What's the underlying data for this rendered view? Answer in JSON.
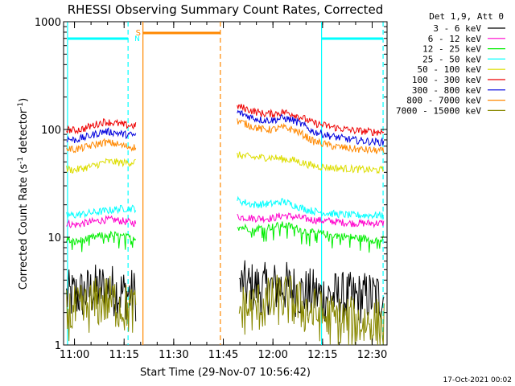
{
  "chart_data": {
    "type": "line",
    "title": "RHESSI Observing Summary Count Rates, Corrected",
    "xlabel": "Start Time (29-Nov-07 10:56:42)",
    "ylabel": "Corrected Count Rate (s",
    "ylabel_sup1": "-1",
    "ylabel_mid": " detector",
    "ylabel_sup2": "-1",
    "ylabel_end": ")",
    "yscale": "log",
    "xlim": [
      10.945,
      12.575
    ],
    "ylim": [
      1,
      1000
    ],
    "x_ticks": [
      {
        "value": 11.0,
        "label": "11:00"
      },
      {
        "value": 11.25,
        "label": "11:15"
      },
      {
        "value": 11.5,
        "label": "11:30"
      },
      {
        "value": 11.75,
        "label": "11:45"
      },
      {
        "value": 12.0,
        "label": "12:00"
      },
      {
        "value": 12.25,
        "label": "12:15"
      },
      {
        "value": 12.5,
        "label": "12:30"
      }
    ],
    "y_ticks": [
      {
        "value": 1,
        "label": "1"
      },
      {
        "value": 10,
        "label": "10"
      },
      {
        "value": 100,
        "label": "100"
      },
      {
        "value": 1000,
        "label": "1000"
      }
    ],
    "legend_title": "Det 1,9, Att 0",
    "legend_position": "right",
    "series": [
      {
        "name": "3 - 6 keV",
        "color": "#000000",
        "segments": [
          [
            [
              10.96,
              2.8
            ],
            [
              11.05,
              3.0
            ],
            [
              11.1,
              3.2
            ],
            [
              11.15,
              3.4
            ],
            [
              11.2,
              3.2
            ],
            [
              11.25,
              3.0
            ],
            [
              11.31,
              2.9
            ]
          ],
          [
            [
              11.83,
              3.5
            ],
            [
              11.9,
              3.4
            ],
            [
              11.95,
              3.3
            ],
            [
              12.0,
              3.4
            ],
            [
              12.05,
              3.5
            ],
            [
              12.1,
              3.3
            ],
            [
              12.15,
              3.0
            ],
            [
              12.22,
              2.9
            ],
            [
              12.3,
              2.8
            ],
            [
              12.4,
              2.7
            ],
            [
              12.5,
              2.8
            ],
            [
              12.56,
              2.8
            ]
          ]
        ]
      },
      {
        "name": "6 - 12 keV",
        "color": "#ff00cc",
        "segments": [
          [
            [
              10.96,
              13.5
            ],
            [
              11.0,
              13.0
            ],
            [
              11.05,
              13.5
            ],
            [
              11.1,
              14.0
            ],
            [
              11.15,
              14.5
            ],
            [
              11.2,
              14.5
            ],
            [
              11.25,
              14.0
            ],
            [
              11.31,
              13.5
            ]
          ],
          [
            [
              11.82,
              15.5
            ],
            [
              11.9,
              15.0
            ],
            [
              12.0,
              15.0
            ],
            [
              12.05,
              16.0
            ],
            [
              12.1,
              15.5
            ],
            [
              12.15,
              15.0
            ],
            [
              12.2,
              14.5
            ],
            [
              12.3,
              14.0
            ],
            [
              12.4,
              13.5
            ],
            [
              12.5,
              13.5
            ],
            [
              12.56,
              13.5
            ]
          ]
        ]
      },
      {
        "name": "12 - 25 keV",
        "color": "#00ee00",
        "segments": [
          [
            [
              10.96,
              9.5
            ],
            [
              11.0,
              9.0
            ],
            [
              11.05,
              9.5
            ],
            [
              11.1,
              10.0
            ],
            [
              11.15,
              10.5
            ],
            [
              11.2,
              10.5
            ],
            [
              11.25,
              10.0
            ],
            [
              11.31,
              10.0
            ]
          ],
          [
            [
              11.82,
              12.5
            ],
            [
              11.9,
              12.0
            ],
            [
              12.0,
              12.5
            ],
            [
              12.05,
              13.0
            ],
            [
              12.1,
              12.5
            ],
            [
              12.15,
              11.5
            ],
            [
              12.2,
              11.0
            ],
            [
              12.3,
              10.5
            ],
            [
              12.4,
              10.0
            ],
            [
              12.5,
              9.5
            ],
            [
              12.56,
              9.5
            ]
          ]
        ]
      },
      {
        "name": "25 - 50 keV",
        "color": "#00ffff",
        "segments": [
          [
            [
              10.96,
              16.0
            ],
            [
              11.0,
              16.0
            ],
            [
              11.05,
              16.5
            ],
            [
              11.1,
              17.0
            ],
            [
              11.15,
              17.5
            ],
            [
              11.2,
              18.0
            ],
            [
              11.25,
              18.5
            ],
            [
              11.31,
              18.5
            ]
          ],
          [
            [
              11.82,
              22.0
            ],
            [
              11.9,
              20.0
            ],
            [
              12.0,
              20.5
            ],
            [
              12.05,
              21.5
            ],
            [
              12.1,
              20.0
            ],
            [
              12.15,
              18.5
            ],
            [
              12.2,
              17.5
            ],
            [
              12.3,
              16.5
            ],
            [
              12.4,
              16.0
            ],
            [
              12.5,
              16.0
            ],
            [
              12.56,
              16.0
            ]
          ]
        ]
      },
      {
        "name": "50 - 100 keV",
        "color": "#dddd00",
        "segments": [
          [
            [
              10.96,
              43.0
            ],
            [
              11.0,
              42.0
            ],
            [
              11.05,
              44.0
            ],
            [
              11.1,
              46.0
            ],
            [
              11.15,
              50.0
            ],
            [
              11.2,
              50.0
            ],
            [
              11.25,
              49.0
            ],
            [
              11.31,
              50.0
            ]
          ],
          [
            [
              11.82,
              58.0
            ],
            [
              11.9,
              55.0
            ],
            [
              11.95,
              55.0
            ],
            [
              12.0,
              55.0
            ],
            [
              12.05,
              53.0
            ],
            [
              12.1,
              52.0
            ],
            [
              12.15,
              49.0
            ],
            [
              12.2,
              46.0
            ],
            [
              12.3,
              44.0
            ],
            [
              12.4,
              43.0
            ],
            [
              12.5,
              42.0
            ],
            [
              12.56,
              42.0
            ]
          ]
        ]
      },
      {
        "name": "100 - 300 keV",
        "color": "#ee0000",
        "segments": [
          [
            [
              10.96,
              100.0
            ],
            [
              11.0,
              98.0
            ],
            [
              11.05,
              102.0
            ],
            [
              11.1,
              110.0
            ],
            [
              11.15,
              118.0
            ],
            [
              11.2,
              115.0
            ],
            [
              11.25,
              110.0
            ],
            [
              11.31,
              108.0
            ]
          ],
          [
            [
              11.82,
              165.0
            ],
            [
              11.9,
              148.0
            ],
            [
              11.95,
              140.0
            ],
            [
              12.0,
              140.0
            ],
            [
              12.05,
              145.0
            ],
            [
              12.1,
              140.0
            ],
            [
              12.15,
              128.0
            ],
            [
              12.2,
              115.0
            ],
            [
              12.3,
              105.0
            ],
            [
              12.4,
              98.0
            ],
            [
              12.5,
              95.0
            ],
            [
              12.56,
              95.0
            ]
          ]
        ]
      },
      {
        "name": "300 - 800 keV",
        "color": "#0000dd",
        "segments": [
          [
            [
              10.96,
              82.0
            ],
            [
              11.0,
              80.0
            ],
            [
              11.05,
              84.0
            ],
            [
              11.1,
              90.0
            ],
            [
              11.15,
              96.0
            ],
            [
              11.2,
              94.0
            ],
            [
              11.25,
              90.0
            ],
            [
              11.31,
              88.0
            ]
          ],
          [
            [
              11.82,
              145.0
            ],
            [
              11.9,
              128.0
            ],
            [
              11.95,
              122.0
            ],
            [
              12.0,
              122.0
            ],
            [
              12.05,
              128.0
            ],
            [
              12.1,
              122.0
            ],
            [
              12.15,
              110.0
            ],
            [
              12.2,
              96.0
            ],
            [
              12.3,
              86.0
            ],
            [
              12.4,
              80.0
            ],
            [
              12.5,
              77.0
            ],
            [
              12.56,
              76.0
            ]
          ]
        ]
      },
      {
        "name": "800 - 7000 keV",
        "color": "#ff8800",
        "segments": [
          [
            [
              10.96,
              67.0
            ],
            [
              11.0,
              65.0
            ],
            [
              11.05,
              68.0
            ],
            [
              11.1,
              72.0
            ],
            [
              11.15,
              76.0
            ],
            [
              11.2,
              74.0
            ],
            [
              11.25,
              70.0
            ],
            [
              11.31,
              68.0
            ]
          ],
          [
            [
              11.82,
              120.0
            ],
            [
              11.9,
              106.0
            ],
            [
              11.95,
              100.0
            ],
            [
              12.0,
              100.0
            ],
            [
              12.05,
              104.0
            ],
            [
              12.1,
              100.0
            ],
            [
              12.15,
              90.0
            ],
            [
              12.2,
              78.0
            ],
            [
              12.3,
              70.0
            ],
            [
              12.4,
              66.0
            ],
            [
              12.5,
              64.0
            ],
            [
              12.56,
              63.0
            ]
          ]
        ]
      },
      {
        "name": "7000 - 15000 keV",
        "color": "#888800",
        "segments": [
          [
            [
              10.96,
              1.9
            ],
            [
              11.05,
              2.1
            ],
            [
              11.1,
              2.4
            ],
            [
              11.15,
              2.6
            ],
            [
              11.2,
              2.5
            ],
            [
              11.25,
              2.2
            ],
            [
              11.31,
              2.0
            ]
          ],
          [
            [
              11.83,
              2.1
            ],
            [
              11.9,
              2.2
            ],
            [
              12.0,
              2.5
            ],
            [
              12.05,
              2.7
            ],
            [
              12.1,
              2.5
            ],
            [
              12.15,
              2.2
            ],
            [
              12.2,
              2.0
            ],
            [
              12.3,
              1.7
            ],
            [
              12.4,
              1.6
            ],
            [
              12.5,
              1.6
            ],
            [
              12.56,
              1.5
            ]
          ]
        ]
      }
    ],
    "annotations": {
      "cyan_bars": [
        {
          "x_start": 10.965,
          "x_end": 11.27,
          "label": "N"
        },
        {
          "x_start": 12.245,
          "x_end": 12.555,
          "label": ""
        }
      ],
      "orange_bar": {
        "x_start": 11.345,
        "x_end": 11.735,
        "label": "S"
      },
      "cyan_solid_lines": [
        10.965,
        12.245
      ],
      "cyan_dashed_lines": [
        11.27,
        12.555
      ],
      "orange_solid_lines": [
        11.345
      ],
      "orange_dashed_lines": [
        11.735
      ],
      "vertical_colors": {
        "cyan": "#00ffff",
        "orange": "#ff8800"
      }
    },
    "footer_date": "17-Oct-2021 00:02"
  }
}
